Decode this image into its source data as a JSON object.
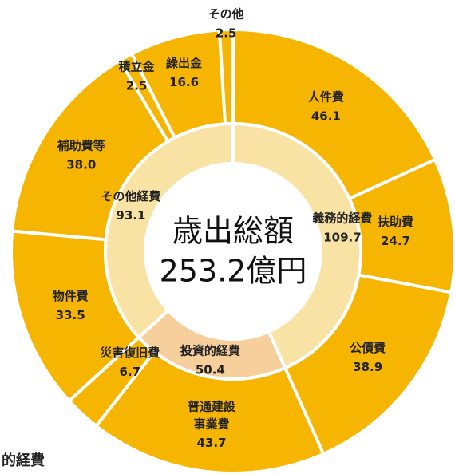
{
  "chart_data": {
    "type": "nested-donut",
    "outer": {
      "categories": [
        "人件費",
        "扶助費",
        "公債費",
        "普通建設事業費",
        "災害復旧費",
        "物件費",
        "補助費等",
        "積立金",
        "繰出金",
        "その他"
      ],
      "values": [
        46.1,
        24.7,
        38.9,
        43.7,
        6.7,
        33.5,
        38.0,
        2.5,
        16.6,
        2.5
      ],
      "value_labels": [
        "46.1",
        "24.7",
        "38.9",
        "43.7",
        "6.7",
        "33.5",
        "38.0",
        "2.5",
        "16.6",
        "2.5"
      ],
      "color": "#f5b500"
    },
    "inner": {
      "categories": [
        "義務的経費",
        "投資的経費",
        "その他経費"
      ],
      "values": [
        109.7,
        50.4,
        93.1
      ],
      "colors": [
        "#f8e2a4",
        "#f7cf9c",
        "#f8e2a4"
      ]
    },
    "center_text": [
      "歳出総額",
      "253.2億円"
    ],
    "footnote": "的経費"
  }
}
